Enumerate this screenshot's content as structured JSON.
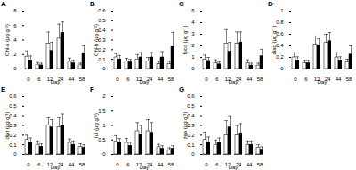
{
  "chart_data": [
    {
      "type": "bar",
      "title": "A",
      "x_label": "Day",
      "y_label": "Chl-a (μg g⁻¹)",
      "categories": [
        0,
        6,
        12,
        24,
        44,
        58
      ],
      "ylim": [
        0,
        8
      ],
      "yticks": [
        0,
        2,
        4,
        6,
        8
      ],
      "series": [
        {
          "color": "#ffffff",
          "values": [
            1.7,
            0.6,
            3.5,
            4.2,
            1.0,
            0.5
          ],
          "errors": [
            0.8,
            0.3,
            1.6,
            2.0,
            0.5,
            0.3
          ]
        },
        {
          "color": "#000000",
          "values": [
            1.2,
            0.5,
            2.5,
            5.0,
            0.8,
            2.2
          ],
          "errors": [
            0.6,
            0.3,
            1.2,
            1.5,
            0.4,
            1.0
          ]
        }
      ]
    },
    {
      "type": "bar",
      "title": "B",
      "x_label": "Day",
      "y_label": "Chl-b (μg g⁻¹)",
      "categories": [
        0,
        6,
        12,
        24,
        44,
        58
      ],
      "ylim": [
        0,
        0.6
      ],
      "yticks": [
        0,
        0.1,
        0.2,
        0.3,
        0.4,
        0.5,
        0.6
      ],
      "series": [
        {
          "color": "#ffffff",
          "values": [
            0.12,
            0.08,
            0.1,
            0.08,
            0.05,
            0.05
          ],
          "errors": [
            0.04,
            0.03,
            0.05,
            0.04,
            0.03,
            0.03
          ]
        },
        {
          "color": "#000000",
          "values": [
            0.1,
            0.07,
            0.12,
            0.12,
            0.12,
            0.23
          ],
          "errors": [
            0.04,
            0.03,
            0.05,
            0.05,
            0.06,
            0.15
          ]
        }
      ]
    },
    {
      "type": "bar",
      "title": "C",
      "x_label": "Day",
      "y_label": "fuco (μg g⁻¹)",
      "categories": [
        0,
        6,
        12,
        24,
        44,
        58
      ],
      "ylim": [
        0,
        5
      ],
      "yticks": [
        0,
        1,
        2,
        3,
        4,
        5
      ],
      "series": [
        {
          "color": "#ffffff",
          "values": [
            0.8,
            0.5,
            2.2,
            2.2,
            0.5,
            0.3
          ],
          "errors": [
            0.4,
            0.3,
            1.2,
            1.0,
            0.3,
            0.2
          ]
        },
        {
          "color": "#000000",
          "values": [
            0.7,
            0.4,
            1.5,
            2.3,
            0.3,
            1.1
          ],
          "errors": [
            0.3,
            0.2,
            0.8,
            0.9,
            0.2,
            0.6
          ]
        }
      ]
    },
    {
      "type": "bar",
      "title": "D",
      "x_label": "Day",
      "y_label": "diad (μg g⁻¹)",
      "categories": [
        0,
        6,
        12,
        24,
        44,
        58
      ],
      "ylim": [
        0,
        1
      ],
      "yticks": [
        0,
        0.2,
        0.4,
        0.6,
        0.8,
        1
      ],
      "series": [
        {
          "color": "#ffffff",
          "values": [
            0.2,
            0.1,
            0.42,
            0.45,
            0.2,
            0.12
          ],
          "errors": [
            0.08,
            0.05,
            0.15,
            0.15,
            0.08,
            0.05
          ]
        },
        {
          "color": "#000000",
          "values": [
            0.15,
            0.1,
            0.4,
            0.48,
            0.15,
            0.25
          ],
          "errors": [
            0.06,
            0.05,
            0.12,
            0.15,
            0.06,
            0.15
          ]
        }
      ]
    },
    {
      "type": "bar",
      "title": "E",
      "x_label": "Day",
      "y_label": "diat (μg g⁻¹)",
      "categories": [
        0,
        6,
        12,
        24,
        44,
        58
      ],
      "ylim": [
        0,
        0.6
      ],
      "yticks": [
        0,
        0.1,
        0.2,
        0.3,
        0.4,
        0.5,
        0.6
      ],
      "series": [
        {
          "color": "#ffffff",
          "values": [
            0.15,
            0.1,
            0.3,
            0.28,
            0.12,
            0.08
          ],
          "errors": [
            0.05,
            0.04,
            0.08,
            0.1,
            0.04,
            0.03
          ]
        },
        {
          "color": "#000000",
          "values": [
            0.12,
            0.08,
            0.28,
            0.3,
            0.1,
            0.07
          ],
          "errors": [
            0.05,
            0.03,
            0.08,
            0.12,
            0.04,
            0.03
          ]
        }
      ]
    },
    {
      "type": "bar",
      "title": "F",
      "x_label": "Day",
      "y_label": "lut (μg g⁻¹)",
      "categories": [
        0,
        6,
        12,
        24,
        44,
        58
      ],
      "ylim": [
        0,
        2
      ],
      "yticks": [
        0,
        0.5,
        1,
        1.5,
        2
      ],
      "series": [
        {
          "color": "#ffffff",
          "values": [
            0.45,
            0.4,
            0.8,
            0.8,
            0.25,
            0.15
          ],
          "errors": [
            0.2,
            0.15,
            0.3,
            0.4,
            0.1,
            0.08
          ]
        },
        {
          "color": "#000000",
          "values": [
            0.4,
            0.3,
            0.7,
            0.75,
            0.2,
            0.2
          ],
          "errors": [
            0.15,
            0.12,
            0.3,
            0.35,
            0.1,
            0.1
          ]
        }
      ]
    },
    {
      "type": "bar",
      "title": "G",
      "x_label": "Day",
      "y_label": "zea (μg g⁻¹)",
      "categories": [
        0,
        6,
        12,
        24,
        44,
        58
      ],
      "ylim": [
        0,
        0.6
      ],
      "yticks": [
        0,
        0.1,
        0.2,
        0.3,
        0.4,
        0.5,
        0.6
      ],
      "series": [
        {
          "color": "#ffffff",
          "values": [
            0.15,
            0.1,
            0.2,
            0.2,
            0.1,
            0.07
          ],
          "errors": [
            0.08,
            0.05,
            0.15,
            0.1,
            0.04,
            0.03
          ]
        },
        {
          "color": "#000000",
          "values": [
            0.12,
            0.12,
            0.28,
            0.22,
            0.1,
            0.05
          ],
          "errors": [
            0.06,
            0.05,
            0.12,
            0.1,
            0.04,
            0.03
          ]
        }
      ]
    }
  ]
}
